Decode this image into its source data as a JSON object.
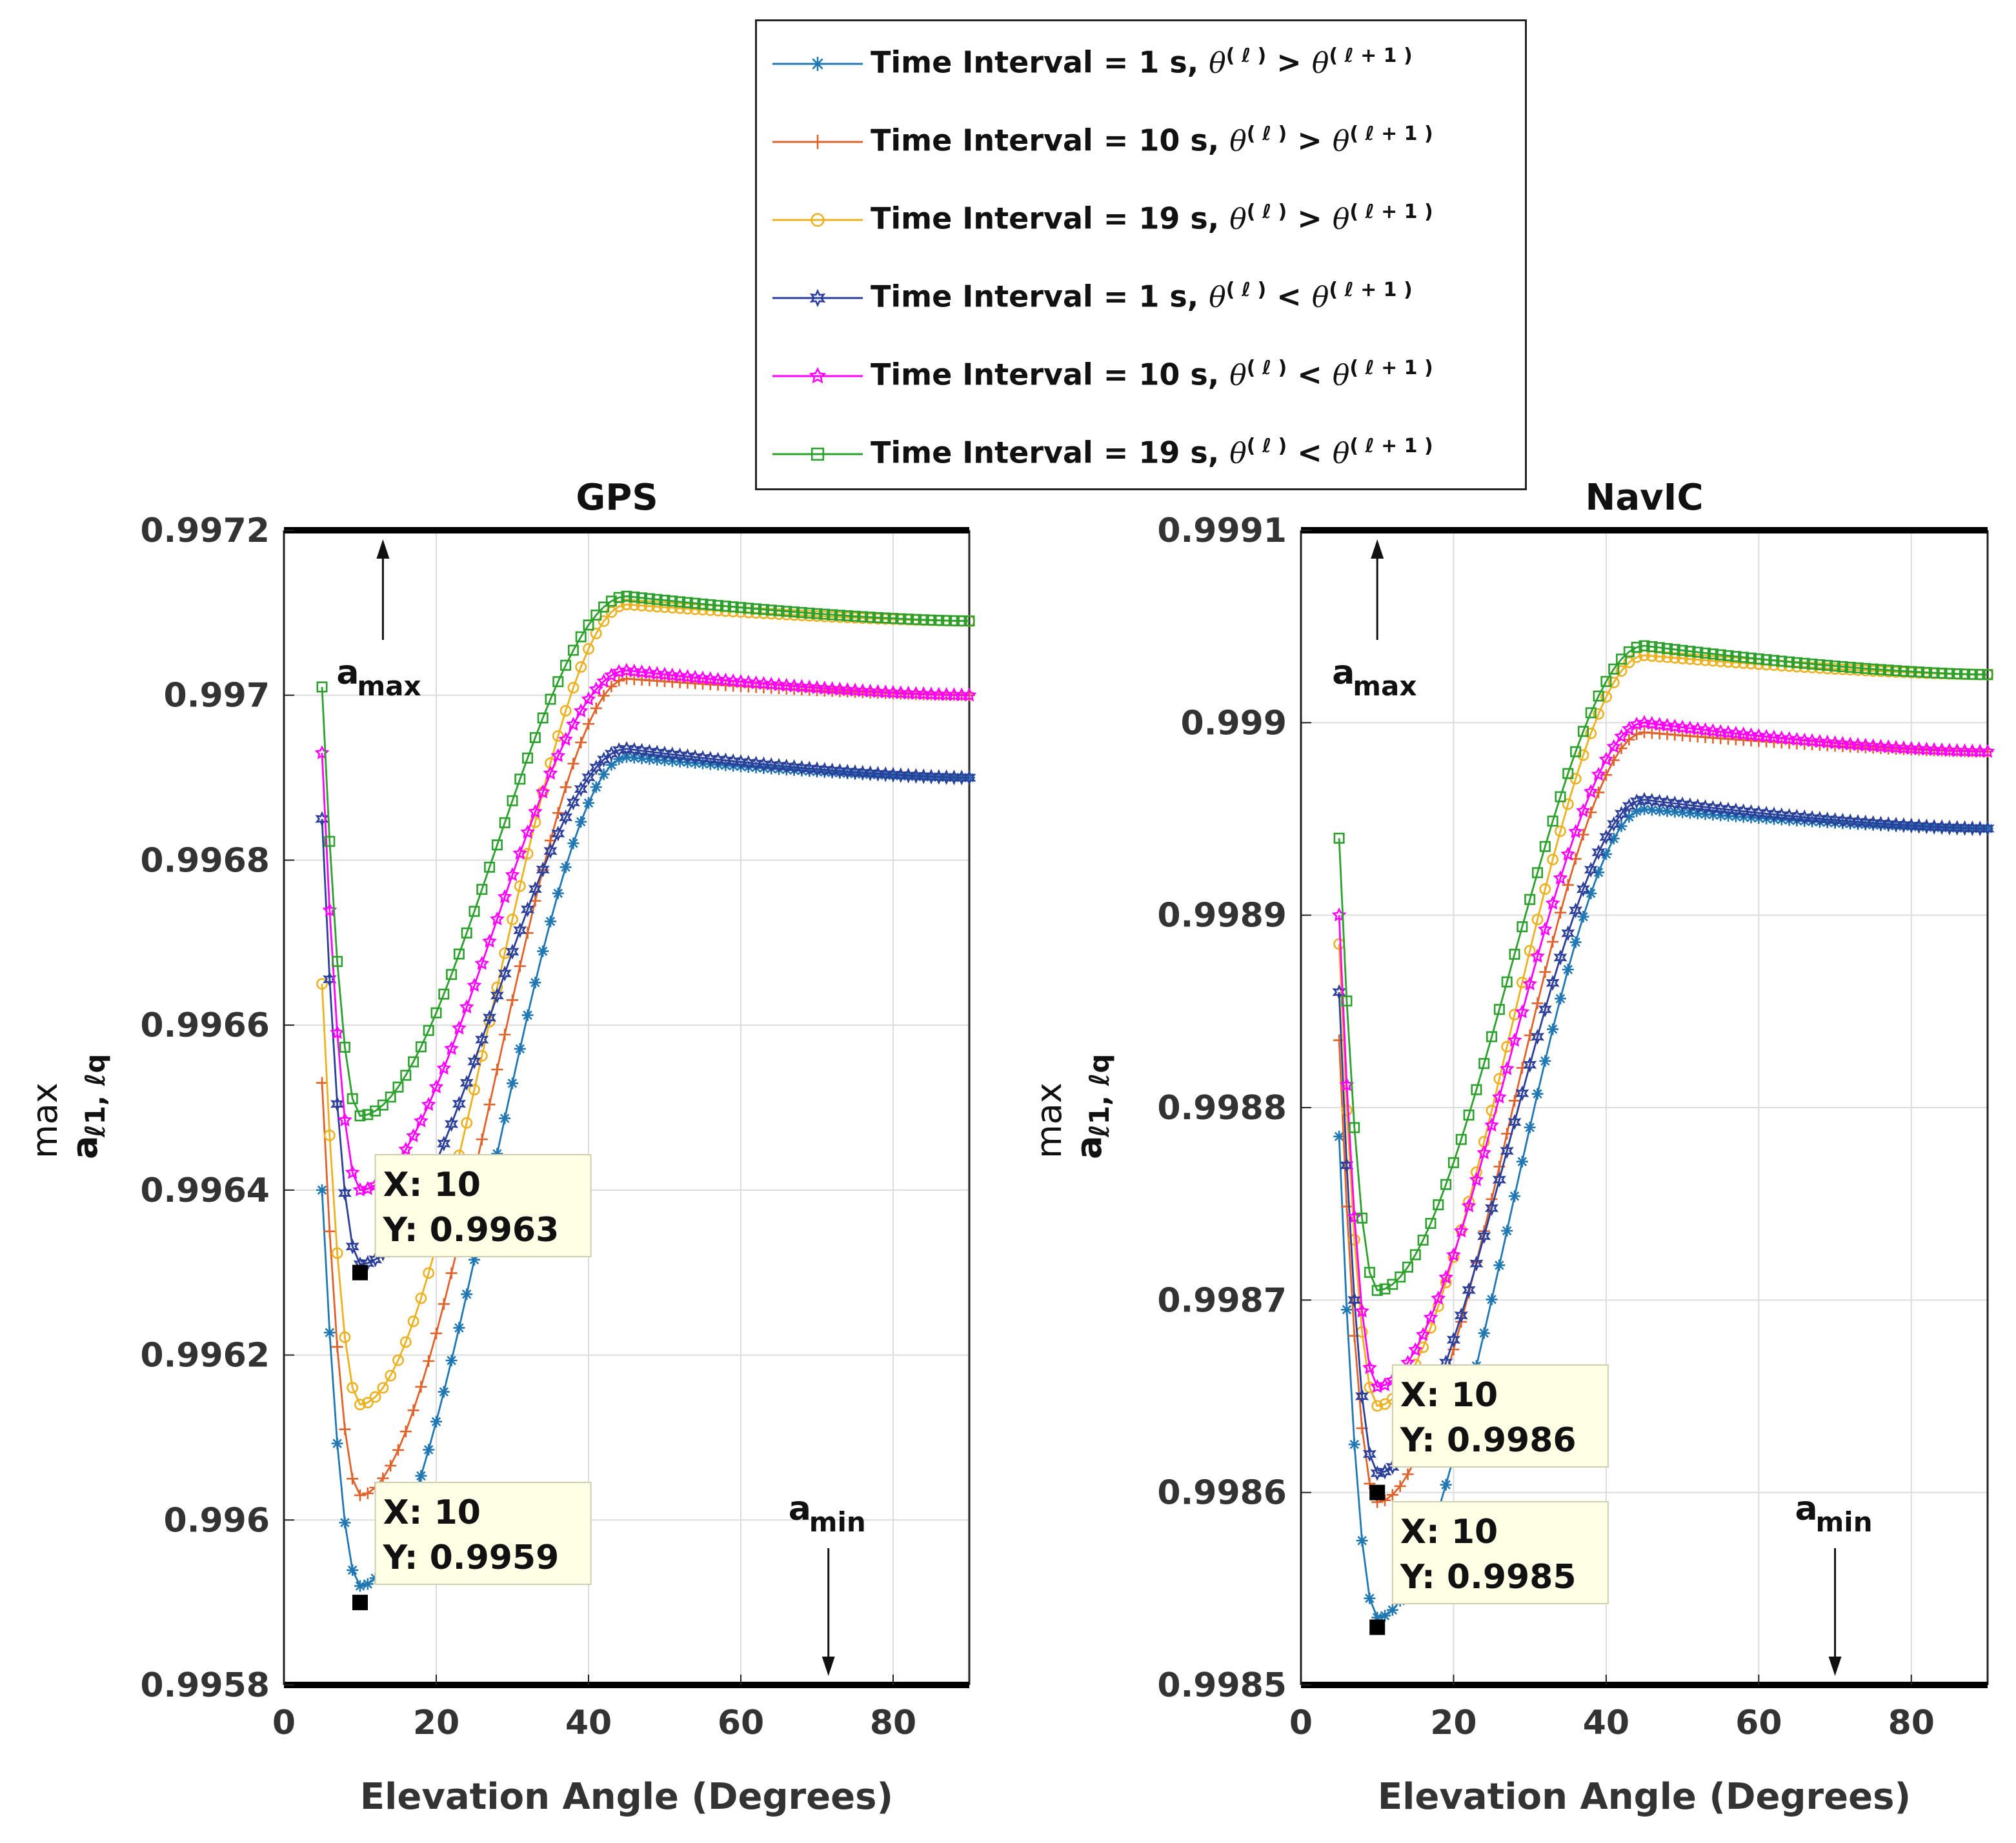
{
  "chart_data": [
    {
      "type": "line",
      "title": "GPS",
      "xlabel": "Elevation Angle (Degrees)",
      "ylabel_top": "max",
      "ylabel_bottom": "a",
      "ylabel_sub": "ℓ1, ℓq",
      "xlim": [
        0,
        90
      ],
      "ylim": [
        0.9958,
        0.9972
      ],
      "xticks": [
        "0",
        "20",
        "40",
        "60",
        "80"
      ],
      "yticks": [
        "0.9958",
        "0.996",
        "0.9962",
        "0.9964",
        "0.9966",
        "0.9968",
        "0.997",
        "0.9972"
      ],
      "grid": true,
      "annotations": {
        "amax": {
          "label": "a",
          "sub": "max"
        },
        "amin": {
          "label": "a",
          "sub": "min"
        }
      },
      "datatips": [
        {
          "x_label": "X: 10",
          "y_label": "Y: 0.9963",
          "x": 10,
          "y": 0.9963
        },
        {
          "x_label": "X: 10",
          "y_label": "Y: 0.9959",
          "x": 10,
          "y": 0.9959
        }
      ],
      "series": [
        {
          "name": "Time Interval = 1 s, θ(ℓ) > θ(ℓ+1)",
          "base": 0.99592,
          "peak": 0.996925,
          "end": 0.9969,
          "start": 0.9964
        },
        {
          "name": "Time Interval = 10 s, θ(ℓ) > θ(ℓ+1)",
          "base": 0.99603,
          "peak": 0.99702,
          "end": 0.997,
          "start": 0.99653
        },
        {
          "name": "Time Interval = 19 s, θ(ℓ) > θ(ℓ+1)",
          "base": 0.99614,
          "peak": 0.99711,
          "end": 0.99709,
          "start": 0.99665
        },
        {
          "name": "Time Interval = 1 s, θ(ℓ) < θ(ℓ+1)",
          "base": 0.99631,
          "peak": 0.996935,
          "end": 0.9969,
          "start": 0.99685
        },
        {
          "name": "Time Interval = 10 s, θ(ℓ) < θ(ℓ+1)",
          "base": 0.9964,
          "peak": 0.99703,
          "end": 0.997,
          "start": 0.99693
        },
        {
          "name": "Time Interval = 19 s, θ(ℓ) < θ(ℓ+1)",
          "base": 0.99649,
          "peak": 0.99712,
          "end": 0.99709,
          "start": 0.99701
        }
      ]
    },
    {
      "type": "line",
      "title": "NavIC",
      "xlabel": "Elevation Angle (Degrees)",
      "ylabel_top": "max",
      "ylabel_bottom": "a",
      "ylabel_sub": "ℓ1, ℓq",
      "xlim": [
        0,
        90
      ],
      "ylim": [
        0.9985,
        0.9991
      ],
      "xticks": [
        "0",
        "20",
        "40",
        "60",
        "80"
      ],
      "yticks": [
        "0.9985",
        "0.9986",
        "0.9987",
        "0.9988",
        "0.9989",
        "0.999",
        "0.9991"
      ],
      "grid": true,
      "annotations": {
        "amax": {
          "label": "a",
          "sub": "max"
        },
        "amin": {
          "label": "a",
          "sub": "min"
        }
      },
      "datatips": [
        {
          "x_label": "X: 10",
          "y_label": "Y: 0.9986",
          "x": 10,
          "y": 0.9986
        },
        {
          "x_label": "X: 10",
          "y_label": "Y: 0.9985",
          "x": 10,
          "y": 0.99853
        }
      ],
      "series": [
        {
          "name": "Time Interval = 1 s, θ(ℓ) > θ(ℓ+1)",
          "base": 0.998535,
          "peak": 0.998955,
          "end": 0.998945,
          "start": 0.998785
        },
        {
          "name": "Time Interval = 10 s, θ(ℓ) > θ(ℓ+1)",
          "base": 0.998595,
          "peak": 0.998995,
          "end": 0.998985,
          "start": 0.998835
        },
        {
          "name": "Time Interval = 19 s, θ(ℓ) > θ(ℓ+1)",
          "base": 0.998645,
          "peak": 0.999035,
          "end": 0.999025,
          "start": 0.998885
        },
        {
          "name": "Time Interval = 1 s, θ(ℓ) < θ(ℓ+1)",
          "base": 0.99861,
          "peak": 0.99896,
          "end": 0.998945,
          "start": 0.99886
        },
        {
          "name": "Time Interval = 10 s, θ(ℓ) < θ(ℓ+1)",
          "base": 0.998655,
          "peak": 0.999,
          "end": 0.998985,
          "start": 0.9989
        },
        {
          "name": "Time Interval = 19 s, θ(ℓ) < θ(ℓ+1)",
          "base": 0.998705,
          "peak": 0.99904,
          "end": 0.999025,
          "start": 0.99894
        }
      ]
    }
  ],
  "legend": {
    "entries": [
      {
        "prefix": "Time Interval = 1 s, ",
        "relation": ">",
        "color": "#1f77b4",
        "marker": "asterisk"
      },
      {
        "prefix": "Time Interval = 10 s, ",
        "relation": ">",
        "color": "#e0622a",
        "marker": "plus"
      },
      {
        "prefix": "Time Interval = 19 s, ",
        "relation": ">",
        "color": "#edb120",
        "marker": "circle"
      },
      {
        "prefix": "Time Interval = 1 s, ",
        "relation": "<",
        "color": "#2b3f9a",
        "marker": "hexagram"
      },
      {
        "prefix": "Time Interval = 10 s, ",
        "relation": "<",
        "color": "#ff00ff",
        "marker": "star"
      },
      {
        "prefix": "Time Interval = 19 s, ",
        "relation": "<",
        "color": "#2ca02c",
        "marker": "square"
      }
    ],
    "theta": "θ",
    "sup_l": "( ℓ )",
    "sup_l1": "( ℓ + 1 )"
  }
}
